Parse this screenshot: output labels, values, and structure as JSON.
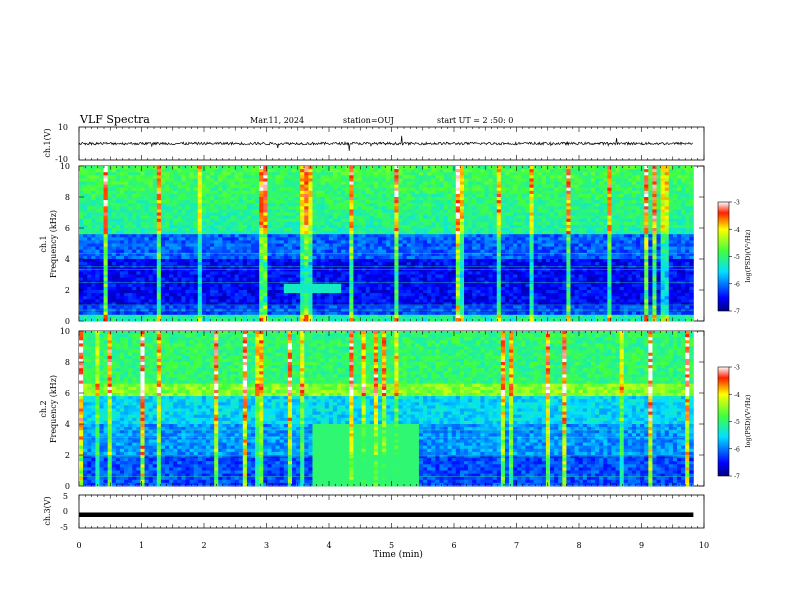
{
  "header": {
    "title": "VLF Spectra",
    "date": "Mar.11, 2024",
    "station": "station=OUJ",
    "start_ut": "start UT =  2 :50: 0"
  },
  "chart_data": [
    {
      "type": "line",
      "name": "ch1-waveform",
      "ylabel": "ch.1(V)",
      "ylim": [
        -10,
        10
      ],
      "yticks": [
        "10",
        "-10"
      ],
      "baseline": 0
    },
    {
      "type": "heatmap",
      "name": "ch1-spectrogram",
      "ylabel": "ch.1",
      "ylabel2": "Frequency (kHz)",
      "ylim": [
        0,
        10
      ],
      "yticks": [
        "0",
        "2",
        "4",
        "6",
        "8",
        "10"
      ],
      "colorbar": {
        "range": [
          -7,
          -3
        ],
        "ticks": [
          "-3",
          "-4",
          "-5",
          "-6",
          "-7"
        ],
        "label": "log(PSD)(V²/Hz)"
      },
      "features": [
        {
          "kind": "quiet-band",
          "freq_kHz": [
            0.5,
            5.5
          ]
        },
        {
          "kind": "tone",
          "freq_kHz": 2.1,
          "time_min": [
            3.3,
            4.2
          ]
        }
      ]
    },
    {
      "type": "heatmap",
      "name": "ch2-spectrogram",
      "ylabel": "ch.2",
      "ylabel2": "Frequency (kHz)",
      "ylim": [
        0,
        10
      ],
      "yticks": [
        "0",
        "2",
        "4",
        "6",
        "8",
        "10"
      ],
      "colorbar": {
        "range": [
          -7,
          -3
        ],
        "ticks": [
          "-3",
          "-4",
          "-5",
          "-6",
          "-7"
        ],
        "label": "log(PSD)(V²/Hz)"
      },
      "features": [
        {
          "kind": "band",
          "freq_kHz": 6.2
        },
        {
          "kind": "broadband",
          "freq_kHz": [
            0,
            4
          ],
          "time_min": [
            3.75,
            5.45
          ]
        }
      ]
    },
    {
      "type": "line",
      "name": "ch3-trace",
      "ylabel": "ch.3(V)",
      "ylim": [
        -5,
        5
      ],
      "yticks": [
        "5",
        "0",
        "-5"
      ],
      "value": -1
    }
  ],
  "xaxis": {
    "label": "Time (min)",
    "range": [
      0,
      10
    ],
    "ticks": [
      "0",
      "1",
      "2",
      "3",
      "4",
      "5",
      "6",
      "7",
      "8",
      "9",
      "10"
    ],
    "data_end": 9.83
  }
}
